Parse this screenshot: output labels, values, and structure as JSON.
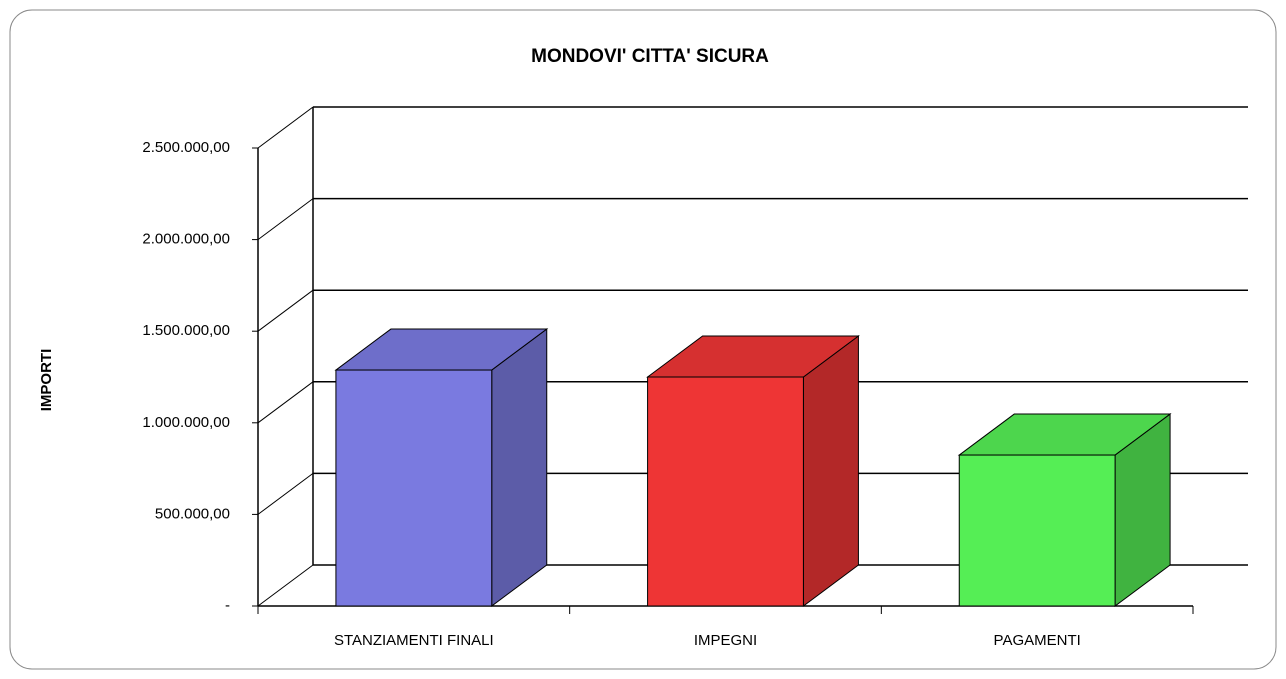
{
  "chart_data": {
    "type": "bar3d",
    "title": "MONDOVI' CITTA' SICURA",
    "y_label": "IMPORTI",
    "categories": [
      "STANZIAMENTI FINALI",
      "IMPEGNI",
      "PAGAMENTI"
    ],
    "values": [
      1288000,
      1250000,
      824000
    ],
    "colors": [
      "#7a7ae0",
      "#ee3535",
      "#55ee55"
    ],
    "ylim": [
      0,
      2500000
    ],
    "yticks": [
      {
        "value": 0,
        "label": "-"
      },
      {
        "value": 500000,
        "label": "500.000,00"
      },
      {
        "value": 1000000,
        "label": "1.000.000,00"
      },
      {
        "value": 1500000,
        "label": "1.500.000,00"
      },
      {
        "value": 2000000,
        "label": "2.000.000,00"
      },
      {
        "value": 2500000,
        "label": "2.500.000,00"
      }
    ],
    "grid": true
  }
}
